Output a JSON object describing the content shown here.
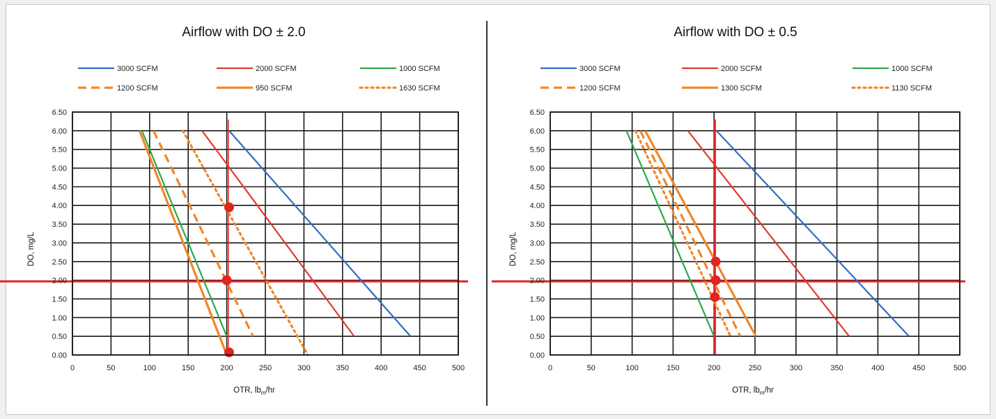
{
  "chart_data": [
    {
      "type": "line",
      "title": "Airflow with DO ± 2.0",
      "xlabel_parts": [
        "OTR, lb",
        "m",
        "/hr"
      ],
      "ylabel": "DO, mg/L",
      "xlim": [
        0,
        500
      ],
      "ylim": [
        0,
        6.5
      ],
      "x_ticks": [
        "0",
        "50",
        "100",
        "150",
        "200",
        "250",
        "300",
        "350",
        "400",
        "450",
        "500"
      ],
      "y_ticks": [
        "0.00",
        "0.50",
        "1.00",
        "1.50",
        "2.00",
        "2.50",
        "3.00",
        "3.50",
        "4.00",
        "4.50",
        "5.00",
        "5.50",
        "6.00",
        "6.50"
      ],
      "grid": true,
      "legend_position": "top",
      "series": [
        {
          "name": "3000 SCFM",
          "color": "#2e6fc4",
          "style": "solid",
          "points": [
            [
              203,
              6.0
            ],
            [
              438,
              0.5
            ]
          ]
        },
        {
          "name": "2000 SCFM",
          "color": "#e03a2e",
          "style": "solid",
          "points": [
            [
              168,
              6.0
            ],
            [
              365,
              0.5
            ]
          ]
        },
        {
          "name": "1000 SCFM",
          "color": "#2ca84a",
          "style": "solid",
          "points": [
            [
              90,
              6.0
            ],
            [
              200,
              0.5
            ]
          ]
        },
        {
          "name": "1200 SCFM",
          "color": "#f0862a",
          "style": "dashed",
          "points": [
            [
              105,
              6.0
            ],
            [
              234,
              0.5
            ]
          ]
        },
        {
          "name": "950 SCFM",
          "color": "#f0862a",
          "style": "solid",
          "points": [
            [
              87,
              6.0
            ],
            [
              200,
              0.0
            ]
          ]
        },
        {
          "name": "1630 SCFM",
          "color": "#f0862a",
          "style": "dotted",
          "points": [
            [
              143,
              6.0
            ],
            [
              305,
              0.0
            ]
          ]
        }
      ],
      "reference_lines": {
        "vertical_x": 202,
        "vertical_range": [
          0.0,
          6.3
        ],
        "vertical_width": 1.5,
        "horizontal_y": 1.97,
        "color": "#e02424"
      },
      "markers": [
        [
          203,
          3.95
        ],
        [
          200,
          2.0
        ],
        [
          203,
          0.07
        ]
      ]
    },
    {
      "type": "line",
      "title": "Airflow with DO ± 0.5",
      "xlabel_parts": [
        "OTR, lb",
        "m",
        "/hr"
      ],
      "ylabel": "DO, mg/L",
      "xlim": [
        0,
        500
      ],
      "ylim": [
        0,
        6.5
      ],
      "x_ticks": [
        "0",
        "50",
        "100",
        "150",
        "200",
        "250",
        "300",
        "350",
        "400",
        "450",
        "500"
      ],
      "y_ticks": [
        "0.00",
        "0.50",
        "1.00",
        "1.50",
        "2.00",
        "2.50",
        "3.00",
        "3.50",
        "4.00",
        "4.50",
        "5.00",
        "5.50",
        "6.00",
        "6.50"
      ],
      "grid": true,
      "legend_position": "top",
      "series": [
        {
          "name": "3000 SCFM",
          "color": "#2e6fc4",
          "style": "solid",
          "points": [
            [
              203,
              6.0
            ],
            [
              438,
              0.5
            ]
          ]
        },
        {
          "name": "2000 SCFM",
          "color": "#e03a2e",
          "style": "solid",
          "points": [
            [
              168,
              6.0
            ],
            [
              365,
              0.5
            ]
          ]
        },
        {
          "name": "1000 SCFM",
          "color": "#2ca84a",
          "style": "solid",
          "points": [
            [
              93,
              6.0
            ],
            [
              200,
              0.5
            ]
          ]
        },
        {
          "name": "1200 SCFM",
          "color": "#f0862a",
          "style": "dashed",
          "points": [
            [
              110,
              6.0
            ],
            [
              232,
              0.5
            ]
          ]
        },
        {
          "name": "1300 SCFM",
          "color": "#f0862a",
          "style": "solid",
          "points": [
            [
              116,
              6.0
            ],
            [
              251,
              0.5
            ]
          ]
        },
        {
          "name": "1130 SCFM",
          "color": "#f0862a",
          "style": "dotted",
          "points": [
            [
              104,
              6.0
            ],
            [
              220,
              0.5
            ]
          ]
        }
      ],
      "reference_lines": {
        "vertical_x": 201,
        "vertical_range": [
          0.0,
          6.3
        ],
        "vertical_width": 3,
        "horizontal_y": 1.97,
        "color": "#e02424"
      },
      "markers": [
        [
          202,
          2.5
        ],
        [
          202,
          2.0
        ],
        [
          201,
          1.55
        ]
      ]
    }
  ]
}
